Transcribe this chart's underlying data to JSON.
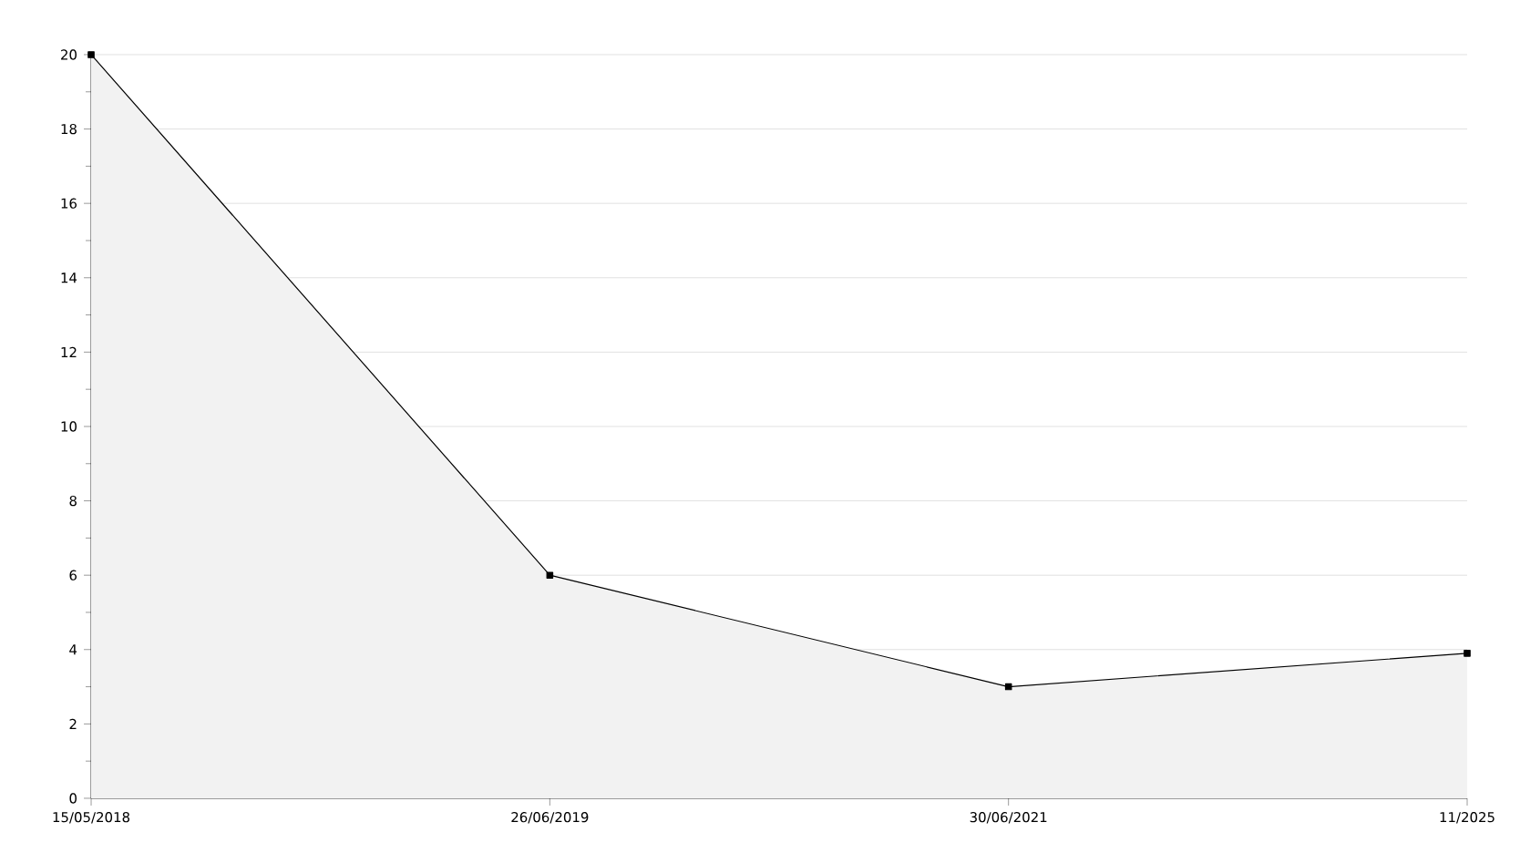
{
  "chart_data": {
    "type": "area",
    "categories": [
      "15/05/2018",
      "26/06/2019",
      "30/06/2021",
      "11/2025"
    ],
    "series": [
      {
        "color": "#000000",
        "values": [
          20,
          6,
          3,
          3.9
        ]
      }
    ],
    "ylim": [
      0,
      20
    ],
    "yticks": [
      0,
      2,
      4,
      6,
      8,
      10,
      12,
      14,
      16,
      18,
      20
    ],
    "grid": "y",
    "marker": "square",
    "line_style": "solid"
  }
}
